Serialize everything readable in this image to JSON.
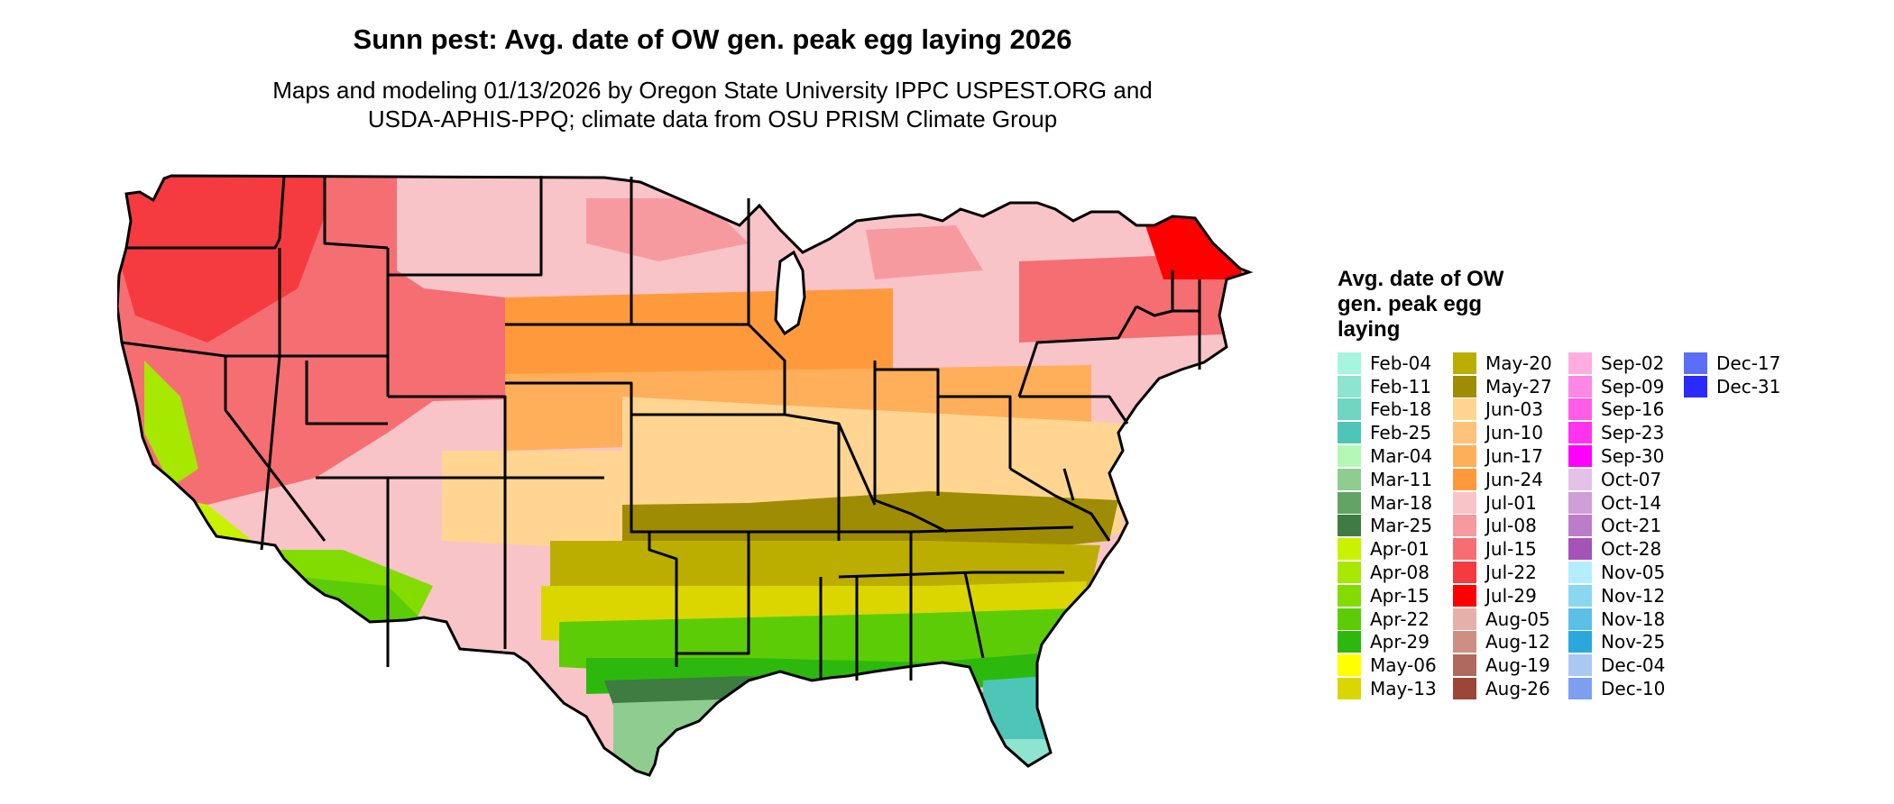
{
  "title": "Sunn pest: Avg. date of OW gen. peak egg laying 2026",
  "subtitle_lines": [
    "Maps and modeling 01/13/2026 by Oregon State University IPPC USPEST.ORG and",
    "USDA-APHIS-PPQ; climate data from OSU PRISM Climate Group"
  ],
  "legend": {
    "title_lines": [
      "Avg. date of OW",
      "gen. peak egg",
      "laying"
    ],
    "columns": [
      [
        {
          "label": "Feb-04",
          "color": "#a6f5de"
        },
        {
          "label": "Feb-11",
          "color": "#8de4cf"
        },
        {
          "label": "Feb-18",
          "color": "#6fd6c2"
        },
        {
          "label": "Feb-25",
          "color": "#4dc6b8"
        },
        {
          "label": "Mar-04",
          "color": "#b5f7b5"
        },
        {
          "label": "Mar-11",
          "color": "#8fcc8f"
        },
        {
          "label": "Mar-18",
          "color": "#63a363"
        },
        {
          "label": "Mar-25",
          "color": "#3e7c42"
        },
        {
          "label": "Apr-01",
          "color": "#c8f200"
        },
        {
          "label": "Apr-08",
          "color": "#a7e800"
        },
        {
          "label": "Apr-15",
          "color": "#82dc00"
        },
        {
          "label": "Apr-22",
          "color": "#5bcc06"
        },
        {
          "label": "Apr-29",
          "color": "#2db80e"
        },
        {
          "label": "May-06",
          "color": "#ffff00"
        },
        {
          "label": "May-13",
          "color": "#dcd600"
        }
      ],
      [
        {
          "label": "May-20",
          "color": "#bcae00"
        },
        {
          "label": "May-27",
          "color": "#9f8c05"
        },
        {
          "label": "Jun-03",
          "color": "#ffd591"
        },
        {
          "label": "Jun-10",
          "color": "#ffc27a"
        },
        {
          "label": "Jun-17",
          "color": "#ffae5a"
        },
        {
          "label": "Jun-24",
          "color": "#ff9a3c"
        },
        {
          "label": "Jul-01",
          "color": "#f8c4c8"
        },
        {
          "label": "Jul-08",
          "color": "#f79a9f"
        },
        {
          "label": "Jul-15",
          "color": "#f56e72"
        },
        {
          "label": "Jul-22",
          "color": "#f53b3f"
        },
        {
          "label": "Jul-29",
          "color": "#ff0000"
        },
        {
          "label": "Aug-05",
          "color": "#e6b0aa"
        },
        {
          "label": "Aug-12",
          "color": "#cd8f84"
        },
        {
          "label": "Aug-19",
          "color": "#b06a5d"
        },
        {
          "label": "Aug-26",
          "color": "#9b4637"
        }
      ],
      [
        {
          "label": "Sep-02",
          "color": "#ffade0"
        },
        {
          "label": "Sep-09",
          "color": "#ff87e6"
        },
        {
          "label": "Sep-16",
          "color": "#ff5ce8"
        },
        {
          "label": "Sep-23",
          "color": "#ff33ee"
        },
        {
          "label": "Sep-30",
          "color": "#ff00ff"
        },
        {
          "label": "Oct-07",
          "color": "#e4c2e8"
        },
        {
          "label": "Oct-14",
          "color": "#cf9fd8"
        },
        {
          "label": "Oct-21",
          "color": "#bc7cc9"
        },
        {
          "label": "Oct-28",
          "color": "#a553b9"
        },
        {
          "label": "Nov-05",
          "color": "#b4edff"
        },
        {
          "label": "Nov-12",
          "color": "#8ad8f0"
        },
        {
          "label": "Nov-18",
          "color": "#5cc0e6"
        },
        {
          "label": "Nov-25",
          "color": "#2aa8dc"
        },
        {
          "label": "Dec-04",
          "color": "#aac8f2"
        },
        {
          "label": "Dec-10",
          "color": "#7c9ff0"
        }
      ],
      [
        {
          "label": "Dec-17",
          "color": "#5b6ef5"
        },
        {
          "label": "Dec-31",
          "color": "#2a2aff"
        }
      ]
    ]
  }
}
